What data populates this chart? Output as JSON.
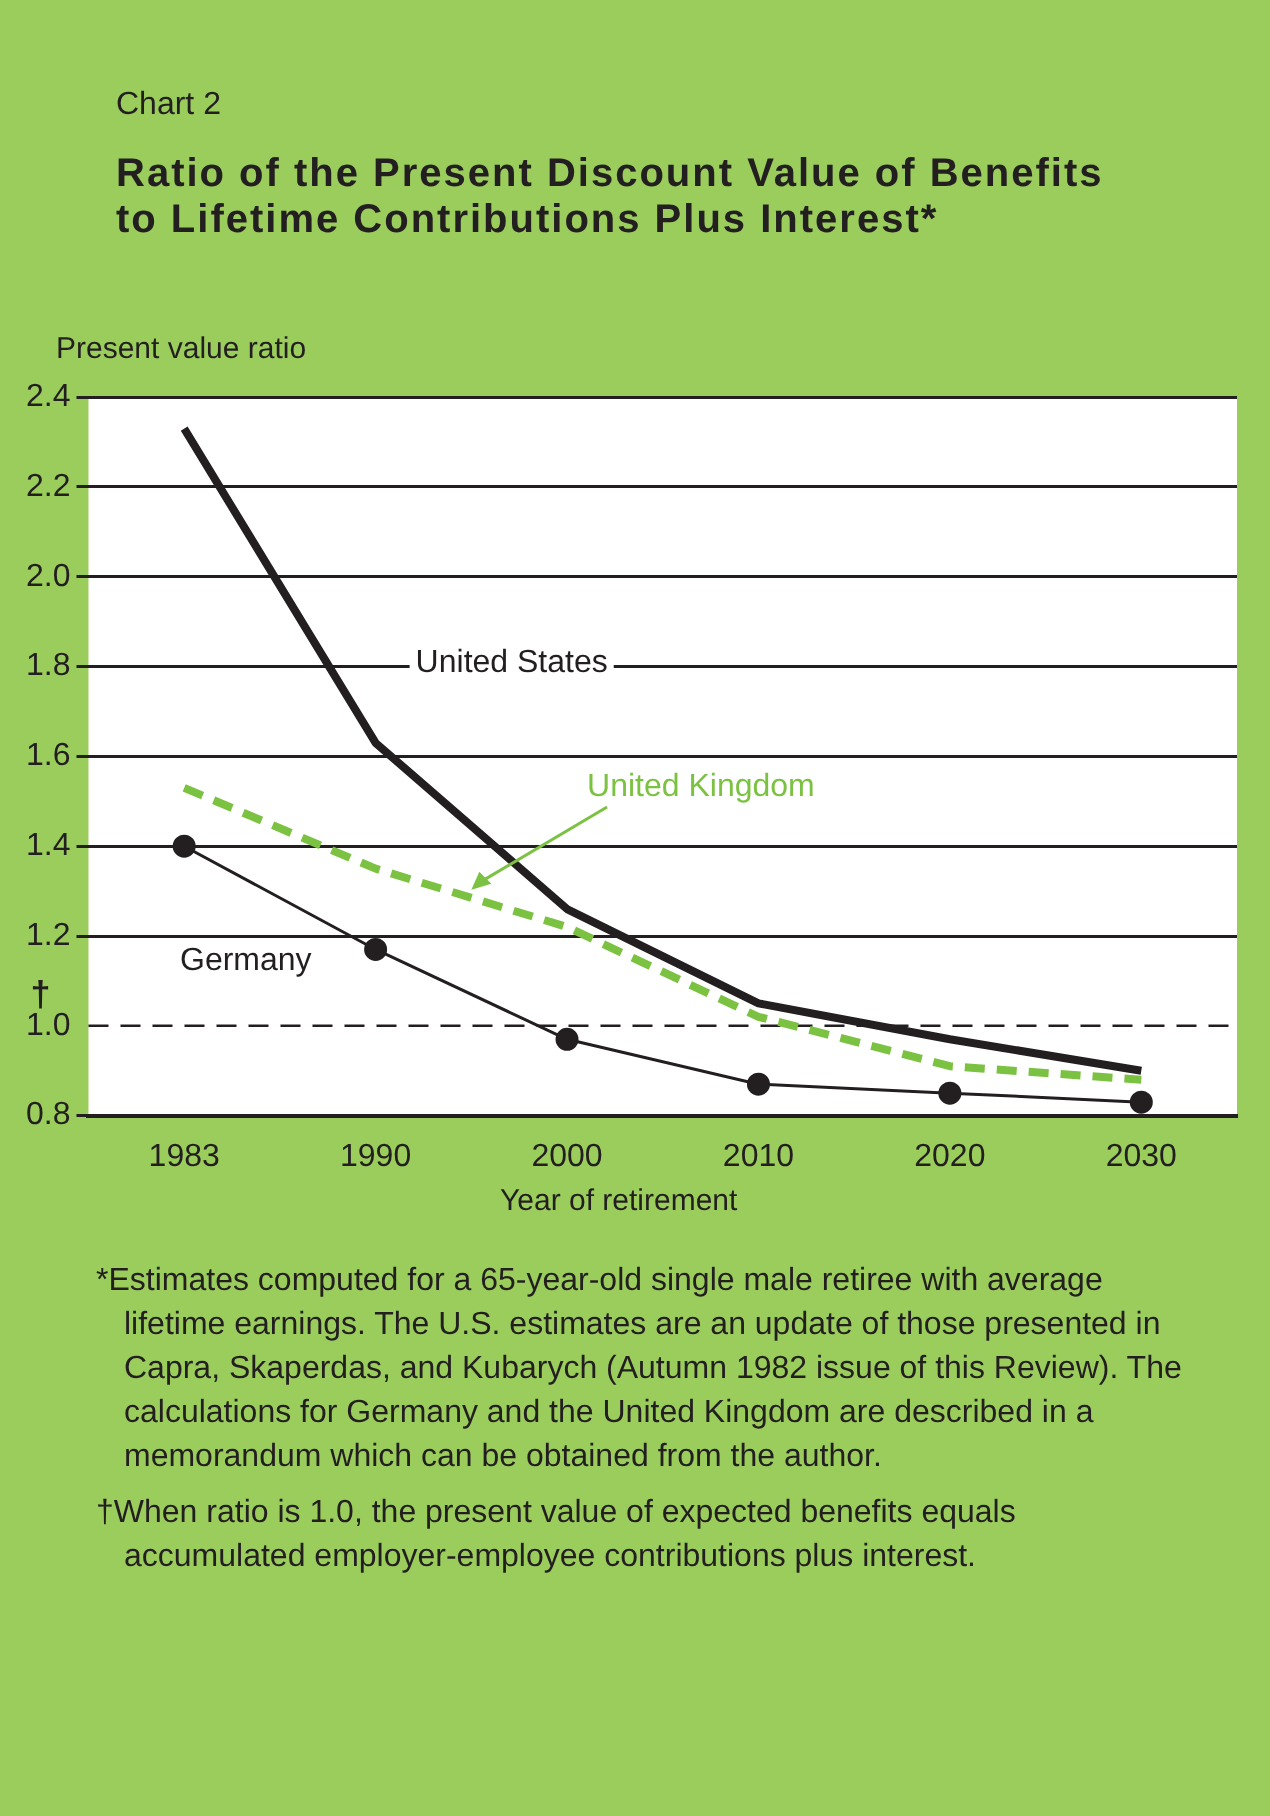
{
  "chart_data": {
    "type": "line",
    "subtitle": "Chart 2",
    "title": "Ratio of the Present Discount Value of Benefits to Lifetime Contributions Plus Interest*",
    "ylabel": "Present value ratio",
    "xlabel": "Year of retirement",
    "categories": [
      "1983",
      "1990",
      "2000",
      "2010",
      "2020",
      "2030"
    ],
    "series": [
      {
        "name": "United States",
        "color": "#231f20",
        "line_style": "solid",
        "marker": "none",
        "values": [
          2.33,
          1.63,
          1.26,
          1.05,
          0.97,
          0.9
        ]
      },
      {
        "name": "United Kingdom",
        "color": "#7cc242",
        "line_style": "dashed",
        "marker": "none",
        "values": [
          1.53,
          1.35,
          1.22,
          1.02,
          0.91,
          0.88
        ]
      },
      {
        "name": "Germany",
        "color": "#231f20",
        "line_style": "solid",
        "marker": "circle",
        "values": [
          1.4,
          1.17,
          0.97,
          0.87,
          0.85,
          0.83
        ]
      }
    ],
    "ylim": [
      0.8,
      2.4
    ],
    "yticks": [
      0.8,
      {
        "value": 1,
        "label": "1.0"
      },
      1.2,
      1.4,
      1.6,
      1.8,
      {
        "value": 2,
        "label": "2.0"
      },
      2.2,
      2.4
    ],
    "grid": "y",
    "legend": false,
    "ref_lines": [
      {
        "axis": "y",
        "value": 1,
        "label": "†",
        "line_style": "dashed",
        "color": "#231f20"
      }
    ],
    "annotations": [
      "*Estimates computed for a 65-year-old single male retiree with average lifetime earnings. The U.S. estimates are an update of those presented in Capra, Skaperdas, and Kubarych (Autumn 1982 issue of this Review). The calculations for Germany and the United Kingdom are described in a memorandum which can be obtained from the author.",
      "†When ratio is 1.0, the present value of expected benefits equals accumulated employer-employee contributions plus interest."
    ]
  }
}
